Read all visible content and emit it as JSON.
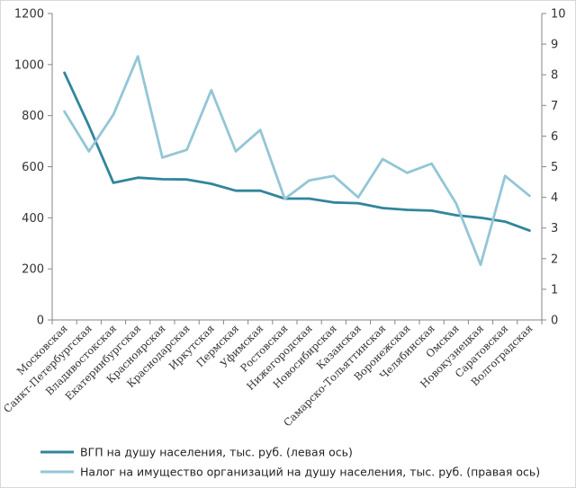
{
  "chart_data": {
    "type": "line",
    "categories": [
      "Московская",
      "Санкт-Петербургская",
      "Владивостокская",
      "Екатеринбургская",
      "Красноярская",
      "Краснодарская",
      "Иркутская",
      "Пермская",
      "Уфимская",
      "Ростовская",
      "Нижегородская",
      "Новосибирская",
      "Казанская",
      "Самарско-Тольяттинская",
      "Воронежская",
      "Челябинская",
      "Омская",
      "Новокузнецкая",
      "Саратовская",
      "Волгоградская"
    ],
    "series": [
      {
        "name": "ВГП на душу населения, тыс. руб.  (левая ось)",
        "axis": "left",
        "color": "#31859c",
        "values": [
          968,
          760,
          537,
          557,
          551,
          550,
          533,
          506,
          506,
          475,
          475,
          460,
          457,
          438,
          431,
          428,
          410,
          400,
          385,
          350
        ]
      },
      {
        "name": "Налог на имущество организаций  на душу населения, тыс. руб.  (правая  ось)",
        "axis": "right",
        "color": "#93c6d6",
        "values": [
          6.8,
          5.5,
          6.7,
          8.6,
          5.3,
          5.55,
          7.5,
          5.5,
          6.2,
          3.95,
          4.55,
          4.7,
          4.0,
          5.25,
          4.8,
          5.1,
          3.8,
          1.8,
          4.7,
          4.05
        ]
      }
    ],
    "y_left": {
      "min": 0,
      "max": 1200,
      "ticks": [
        "0",
        "200",
        "400",
        "600",
        "800",
        "1000",
        "1200"
      ]
    },
    "y_right": {
      "min": 0,
      "max": 10,
      "ticks": [
        "0",
        "1",
        "2",
        "3",
        "4",
        "5",
        "6",
        "7",
        "8",
        "9",
        "10"
      ]
    },
    "grid": false,
    "legend": "bottom"
  }
}
